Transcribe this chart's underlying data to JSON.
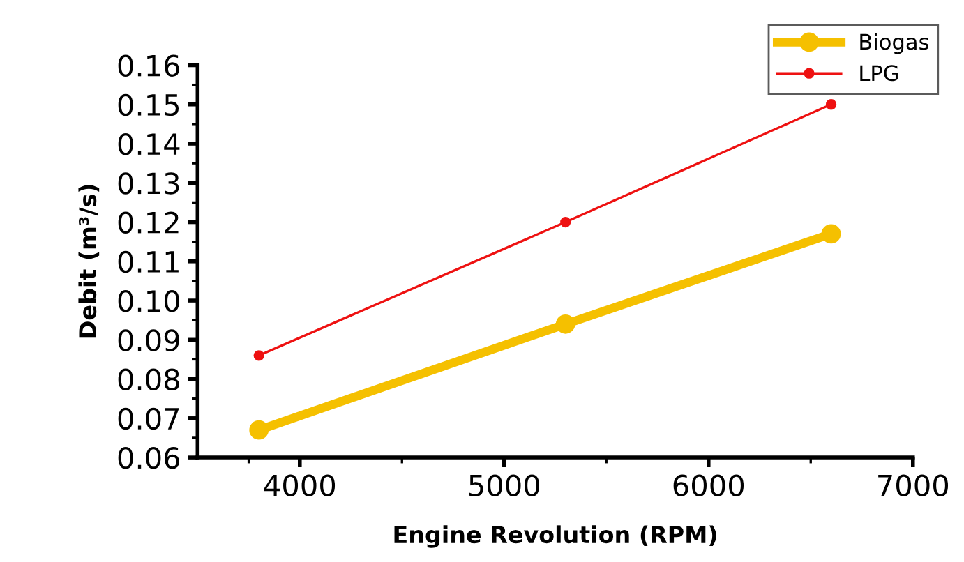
{
  "chart_data": {
    "type": "line",
    "xlabel": "Engine Revolution (RPM)",
    "ylabel": "Debit (m³/s)",
    "xlim": [
      3500,
      7000
    ],
    "xticks": [
      4000,
      5000,
      6000,
      7000
    ],
    "ylim": [
      0.06,
      0.16
    ],
    "yticks": [
      {
        "value": 0.06,
        "label": "0.06"
      },
      {
        "value": 0.07,
        "label": "0.07"
      },
      {
        "value": 0.08,
        "label": "0.08"
      },
      {
        "value": 0.09,
        "label": "0.09"
      },
      {
        "value": 0.1,
        "label": "0.10"
      },
      {
        "value": 0.11,
        "label": "0.11"
      },
      {
        "value": 0.12,
        "label": "0.12"
      },
      {
        "value": 0.13,
        "label": "0.13"
      },
      {
        "value": 0.14,
        "label": "0.14"
      },
      {
        "value": 0.15,
        "label": "0.15"
      },
      {
        "value": 0.16,
        "label": "0.16"
      }
    ],
    "series": [
      {
        "name": "Biogas",
        "color": "#f5c000",
        "x": [
          3800,
          5300,
          6600
        ],
        "values": [
          0.067,
          0.094,
          0.117
        ]
      },
      {
        "name": "LPG",
        "color": "#ee1111",
        "x": [
          3800,
          5300,
          6600
        ],
        "values": [
          0.086,
          0.12,
          0.15
        ]
      }
    ],
    "marker": "circle",
    "line_style": "solid",
    "grid": false,
    "legend": "top right"
  }
}
